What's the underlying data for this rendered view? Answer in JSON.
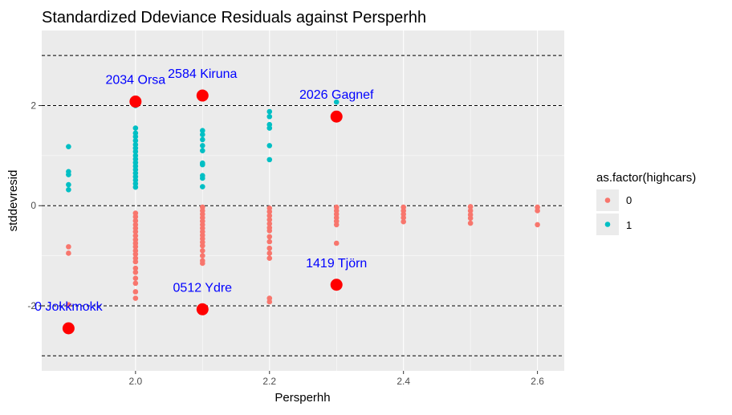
{
  "chart_data": {
    "type": "scatter",
    "title": "Standardized Ddeviance Residuals against Persperhh",
    "xlabel": "Persperhh",
    "ylabel": "stddevresid",
    "xlim": [
      1.86,
      2.64
    ],
    "ylim": [
      -3.3,
      3.5
    ],
    "x_ticks": [
      2.0,
      2.2,
      2.4,
      2.6
    ],
    "x_tick_labels": [
      "2.0",
      "2.2",
      "2.4",
      "2.6"
    ],
    "y_ticks": [
      -2,
      0,
      2
    ],
    "y_tick_labels": [
      "-2",
      "0",
      "2"
    ],
    "grid": true,
    "hlines": [
      -3,
      -2,
      0,
      2,
      3
    ],
    "colors": {
      "panel_bg": "#ebebeb",
      "grid": "#ffffff",
      "series_0": "#f8766d",
      "series_1": "#00bfc4",
      "highlight": "#ff0000",
      "annotation": "#0000ff",
      "hline": "#000000"
    },
    "legend": {
      "title": "as.factor(highcars)",
      "position": "right",
      "entries": [
        "0",
        "1"
      ]
    },
    "series": [
      {
        "name": "0",
        "color": "#f8766d",
        "points": [
          [
            1.9,
            -0.82
          ],
          [
            1.9,
            -0.95
          ],
          [
            1.9,
            -1.98
          ],
          [
            2.0,
            -0.15
          ],
          [
            2.0,
            -0.22
          ],
          [
            2.0,
            -0.3
          ],
          [
            2.0,
            -0.38
          ],
          [
            2.0,
            -0.45
          ],
          [
            2.0,
            -0.52
          ],
          [
            2.0,
            -0.6
          ],
          [
            2.0,
            -0.68
          ],
          [
            2.0,
            -0.75
          ],
          [
            2.0,
            -0.82
          ],
          [
            2.0,
            -0.9
          ],
          [
            2.0,
            -0.97
          ],
          [
            2.0,
            -1.05
          ],
          [
            2.0,
            -1.12
          ],
          [
            2.0,
            -1.25
          ],
          [
            2.0,
            -1.33
          ],
          [
            2.0,
            -1.45
          ],
          [
            2.0,
            -1.55
          ],
          [
            2.0,
            -1.72
          ],
          [
            2.0,
            -1.85
          ],
          [
            2.1,
            -0.03
          ],
          [
            2.1,
            -0.1
          ],
          [
            2.1,
            -0.17
          ],
          [
            2.1,
            -0.24
          ],
          [
            2.1,
            -0.31
          ],
          [
            2.1,
            -0.38
          ],
          [
            2.1,
            -0.45
          ],
          [
            2.1,
            -0.52
          ],
          [
            2.1,
            -0.59
          ],
          [
            2.1,
            -0.66
          ],
          [
            2.1,
            -0.73
          ],
          [
            2.1,
            -0.8
          ],
          [
            2.1,
            -0.9
          ],
          [
            2.1,
            -1.0
          ],
          [
            2.1,
            -1.1
          ],
          [
            2.1,
            -1.15
          ],
          [
            2.2,
            -0.05
          ],
          [
            2.2,
            -0.12
          ],
          [
            2.2,
            -0.2
          ],
          [
            2.2,
            -0.28
          ],
          [
            2.2,
            -0.36
          ],
          [
            2.2,
            -0.44
          ],
          [
            2.2,
            -0.5
          ],
          [
            2.2,
            -0.62
          ],
          [
            2.2,
            -0.72
          ],
          [
            2.2,
            -0.85
          ],
          [
            2.2,
            -0.95
          ],
          [
            2.2,
            -1.05
          ],
          [
            2.2,
            -1.85
          ],
          [
            2.2,
            -1.92
          ],
          [
            2.3,
            -0.03
          ],
          [
            2.3,
            -0.1
          ],
          [
            2.3,
            -0.17
          ],
          [
            2.3,
            -0.24
          ],
          [
            2.3,
            -0.31
          ],
          [
            2.3,
            -0.38
          ],
          [
            2.3,
            -0.75
          ],
          [
            2.4,
            -0.03
          ],
          [
            2.4,
            -0.1
          ],
          [
            2.4,
            -0.17
          ],
          [
            2.4,
            -0.24
          ],
          [
            2.4,
            -0.32
          ],
          [
            2.5,
            -0.02
          ],
          [
            2.5,
            -0.1
          ],
          [
            2.5,
            -0.18
          ],
          [
            2.5,
            -0.25
          ],
          [
            2.5,
            -0.35
          ],
          [
            2.6,
            -0.03
          ],
          [
            2.6,
            -0.1
          ],
          [
            2.6,
            -0.38
          ]
        ]
      },
      {
        "name": "1",
        "color": "#00bfc4",
        "points": [
          [
            1.9,
            1.18
          ],
          [
            1.9,
            0.68
          ],
          [
            1.9,
            0.62
          ],
          [
            1.9,
            0.42
          ],
          [
            1.9,
            0.32
          ],
          [
            2.0,
            2.0
          ],
          [
            2.0,
            1.55
          ],
          [
            2.0,
            1.45
          ],
          [
            2.0,
            1.38
          ],
          [
            2.0,
            1.3
          ],
          [
            2.0,
            1.22
          ],
          [
            2.0,
            1.15
          ],
          [
            2.0,
            1.08
          ],
          [
            2.0,
            1.0
          ],
          [
            2.0,
            0.93
          ],
          [
            2.0,
            0.86
          ],
          [
            2.0,
            0.79
          ],
          [
            2.0,
            0.72
          ],
          [
            2.0,
            0.65
          ],
          [
            2.0,
            0.58
          ],
          [
            2.0,
            0.51
          ],
          [
            2.0,
            0.44
          ],
          [
            2.0,
            0.37
          ],
          [
            2.1,
            1.5
          ],
          [
            2.1,
            1.42
          ],
          [
            2.1,
            1.32
          ],
          [
            2.1,
            1.2
          ],
          [
            2.1,
            1.1
          ],
          [
            2.1,
            0.85
          ],
          [
            2.1,
            0.82
          ],
          [
            2.1,
            0.6
          ],
          [
            2.1,
            0.55
          ],
          [
            2.1,
            0.38
          ],
          [
            2.2,
            1.88
          ],
          [
            2.2,
            1.78
          ],
          [
            2.2,
            1.62
          ],
          [
            2.2,
            1.55
          ],
          [
            2.2,
            1.2
          ],
          [
            2.2,
            0.92
          ],
          [
            2.3,
            2.07
          ]
        ]
      }
    ],
    "highlighted_points": [
      {
        "x": 1.9,
        "y": -2.45,
        "label": "0 Jokkmokk"
      },
      {
        "x": 2.0,
        "y": 2.08,
        "label": "2034 Orsa"
      },
      {
        "x": 2.1,
        "y": 2.2,
        "label": "2584 Kiruna"
      },
      {
        "x": 2.1,
        "y": -2.07,
        "label": "0512 Ydre"
      },
      {
        "x": 2.3,
        "y": 1.78,
        "label": "2026 Gagnef"
      },
      {
        "x": 2.3,
        "y": -1.58,
        "label": "1419 Tjörn"
      }
    ]
  }
}
